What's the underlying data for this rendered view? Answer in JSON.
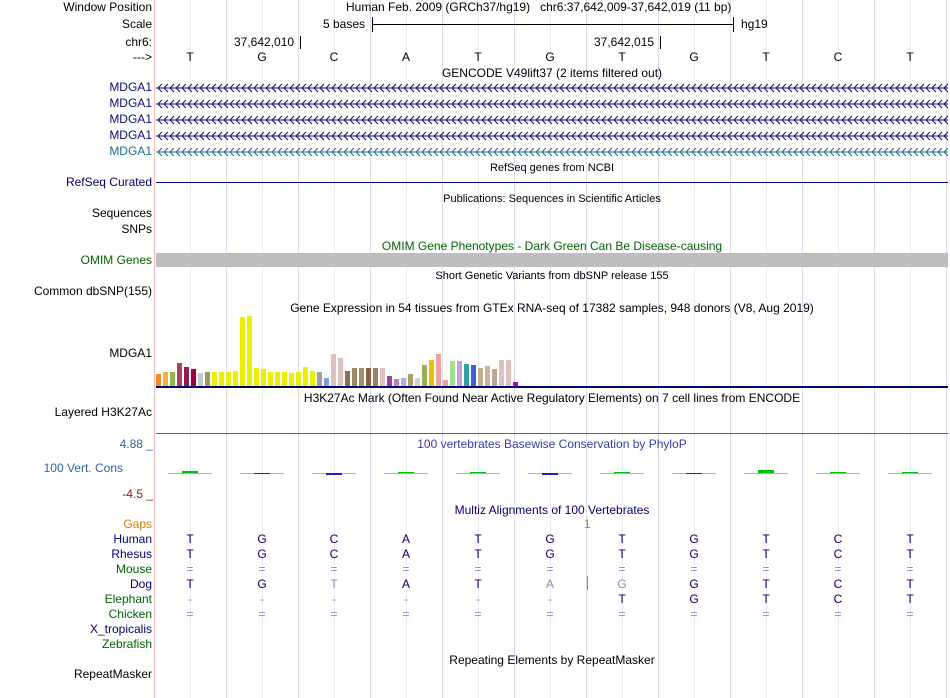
{
  "ruler": {
    "window_label": "Window Position",
    "window_text": "Human Feb. 2009 (GRCh37/hg19)   chr6:37,642,009-37,642,019 (11 bp)",
    "scale_label": "Scale",
    "scale_text": "5 bases",
    "scale_genome": "hg19",
    "chrom_label": "chr6:",
    "coord1": "37,642,010",
    "coord2": "37,642,015",
    "strand_label": "--->",
    "bases": [
      "T",
      "G",
      "C",
      "A",
      "T",
      "G",
      "T",
      "G",
      "T",
      "C",
      "T"
    ]
  },
  "gencode": {
    "title": "GENCODE V49lift37 (2 items filtered out)",
    "transcripts": [
      "MDGA1",
      "MDGA1",
      "MDGA1",
      "MDGA1",
      "MDGA1"
    ],
    "colors": [
      "#0c0c78",
      "#0c0c78",
      "#0c0c78",
      "#0c0c78",
      "#1a7090"
    ]
  },
  "refseq": {
    "title": "RefSeq genes from NCBI",
    "label": "RefSeq Curated"
  },
  "pubs": {
    "title": "Publications: Sequences in Scientific Articles",
    "label1": "Sequences",
    "label2": "SNPs"
  },
  "omim": {
    "title": "OMIM Gene Phenotypes - Dark Green Can Be Disease-causing",
    "label": "OMIM Genes"
  },
  "dbsnp": {
    "title": "Short Genetic Variants from dbSNP release 155",
    "label": "Common dbSNP(155)"
  },
  "gtex": {
    "title": "Gene Expression in 54 tissues from GTEx RNA-seq of 17382 samples, 948 donors (V8, Aug 2019)",
    "label": "MDGA1",
    "bars": [
      {
        "v": 0.17,
        "c": "#f08c28"
      },
      {
        "v": 0.2,
        "c": "#f0b040"
      },
      {
        "v": 0.2,
        "c": "#8fb850"
      },
      {
        "v": 0.33,
        "c": "#b04060"
      },
      {
        "v": 0.27,
        "c": "#8e1e50"
      },
      {
        "v": 0.24,
        "c": "#a00040"
      },
      {
        "v": 0.19,
        "c": "#c8c8c8"
      },
      {
        "v": 0.2,
        "c": "#9a9a60"
      },
      {
        "v": 0.2,
        "c": "#eeee00"
      },
      {
        "v": 0.2,
        "c": "#eeee00"
      },
      {
        "v": 0.2,
        "c": "#eeee00"
      },
      {
        "v": 0.22,
        "c": "#eeee00"
      },
      {
        "v": 0.98,
        "c": "#eeee00"
      },
      {
        "v": 1.0,
        "c": "#eeee00"
      },
      {
        "v": 0.26,
        "c": "#eeee00"
      },
      {
        "v": 0.24,
        "c": "#eeee00"
      },
      {
        "v": 0.2,
        "c": "#eeee00"
      },
      {
        "v": 0.2,
        "c": "#eeee00"
      },
      {
        "v": 0.2,
        "c": "#eeee00"
      },
      {
        "v": 0.19,
        "c": "#eeee00"
      },
      {
        "v": 0.2,
        "c": "#eeee00"
      },
      {
        "v": 0.27,
        "c": "#eeee00"
      },
      {
        "v": 0.22,
        "c": "#eeee00"
      },
      {
        "v": 0.2,
        "c": "#a0a0a0"
      },
      {
        "v": 0.12,
        "c": "#80a0e0"
      },
      {
        "v": 0.46,
        "c": "#e0c0c0"
      },
      {
        "v": 0.4,
        "c": "#e0c0c0"
      },
      {
        "v": 0.21,
        "c": "#8a7050"
      },
      {
        "v": 0.26,
        "c": "#a08868"
      },
      {
        "v": 0.26,
        "c": "#a09070"
      },
      {
        "v": 0.25,
        "c": "#8a6040"
      },
      {
        "v": 0.25,
        "c": "#a08060"
      },
      {
        "v": 0.25,
        "c": "#e0c0c0"
      },
      {
        "v": 0.14,
        "c": "#a040a0"
      },
      {
        "v": 0.1,
        "c": "#c080c0"
      },
      {
        "v": 0.11,
        "c": "#b0b0d8"
      },
      {
        "v": 0.17,
        "c": "#b0a070"
      },
      {
        "v": 0.11,
        "c": "#d0d0d0"
      },
      {
        "v": 0.3,
        "c": "#9ab050"
      },
      {
        "v": 0.37,
        "c": "#f0c000"
      },
      {
        "v": 0.45,
        "c": "#f0a0a0"
      },
      {
        "v": 0.09,
        "c": "#f0a0a0"
      },
      {
        "v": 0.35,
        "c": "#a0e090"
      },
      {
        "v": 0.36,
        "c": "#c0a0e0"
      },
      {
        "v": 0.32,
        "c": "#30a0a0"
      },
      {
        "v": 0.3,
        "c": "#4060e0"
      },
      {
        "v": 0.25,
        "c": "#c0b090"
      },
      {
        "v": 0.29,
        "c": "#d0b0a0"
      },
      {
        "v": 0.24,
        "c": "#c0a890"
      },
      {
        "v": 0.37,
        "c": "#e0c0c0"
      },
      {
        "v": 0.37,
        "c": "#e0c0c0"
      },
      {
        "v": 0.06,
        "c": "#c000c0"
      }
    ]
  },
  "h3k27ac": {
    "title": "H3K27Ac Mark (Often Found Near Active Regulatory Elements) on 7 cell lines from ENCODE",
    "label": "Layered H3K27Ac"
  },
  "phylop": {
    "title": "100 vertebrates Basewise Conservation by PhyloP",
    "label": "100 Vert. Cons",
    "max_label": "4.88 _",
    "min_label": "-4.5 _",
    "range": [
      -4.5,
      4.88
    ],
    "scores": [
      0.4,
      -0.25,
      -0.45,
      0.05,
      0.1,
      -0.3,
      0.12,
      -0.2,
      0.55,
      0.0,
      0.05
    ],
    "pos_color": "#00c000",
    "neg_color": "#2020c0"
  },
  "multiz": {
    "title": "Multiz Alignments of 100 Vertebrates",
    "gaps_label": "Gaps",
    "gap_count": "1",
    "species": [
      {
        "name": "Human",
        "color": "#000070",
        "bases": [
          "T",
          "G",
          "C",
          "A",
          "T",
          "G",
          "T",
          "G",
          "T",
          "C",
          "T"
        ]
      },
      {
        "name": "Rhesus",
        "color": "#000070",
        "bases": [
          "T",
          "G",
          "C",
          "A",
          "T",
          "G",
          "T",
          "G",
          "T",
          "C",
          "T"
        ]
      },
      {
        "name": "Mouse",
        "color": "#006400",
        "bases": [
          "=",
          "=",
          "=",
          "=",
          "=",
          "=",
          "=",
          "=",
          "=",
          "=",
          "="
        ]
      },
      {
        "name": "Dog",
        "color": "#000070",
        "bases": [
          "T",
          "G",
          "T",
          "A",
          "T",
          "A",
          "G",
          "G",
          "T",
          "C",
          "T"
        ]
      },
      {
        "name": "Elephant",
        "color": "#006400",
        "bases": [
          "-",
          "-",
          "-",
          "-",
          "-",
          "-",
          "T",
          "G",
          "T",
          "C",
          "T"
        ]
      },
      {
        "name": "Chicken",
        "color": "#006400",
        "bases": [
          "=",
          "=",
          "=",
          "=",
          "=",
          "=",
          "=",
          "=",
          "=",
          "=",
          "="
        ]
      },
      {
        "name": "X_tropicalis",
        "color": "#000070",
        "bases": []
      },
      {
        "name": "Zebrafish",
        "color": "#006400",
        "bases": []
      }
    ]
  },
  "repeatmasker": {
    "title": "Repeating Elements by RepeatMasker",
    "label": "RepeatMasker"
  }
}
